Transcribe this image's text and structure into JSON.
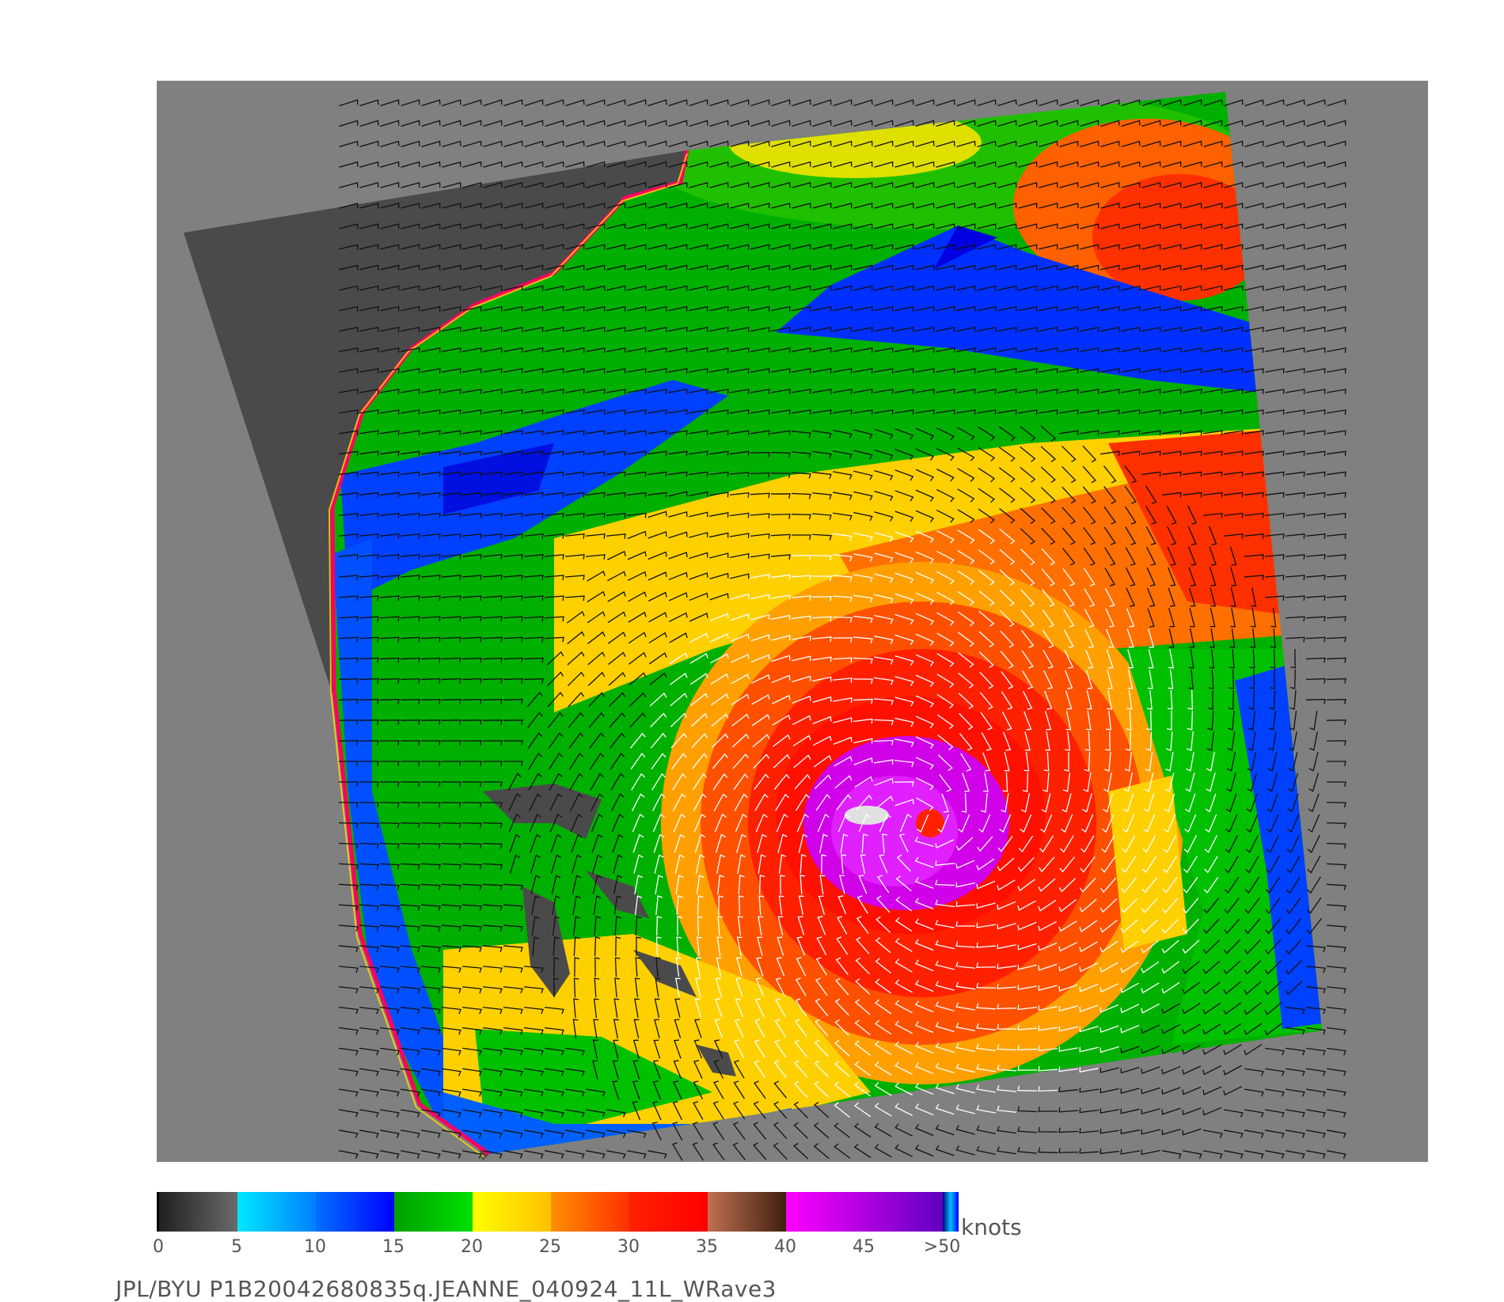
{
  "caption": "JPL/BYU  P1B20042680835q.JEANNE_040924_11L_WRave3",
  "colorbar": {
    "units": "knots",
    "ticks": [
      "0",
      "5",
      "10",
      "15",
      "20",
      "25",
      "30",
      "35",
      "40",
      "45",
      ">50"
    ],
    "segments": [
      {
        "from": 0,
        "to": 5,
        "start": "#202020",
        "end": "#6a6a6a"
      },
      {
        "from": 5,
        "to": 10,
        "start": "#00e8ff",
        "end": "#0080ff"
      },
      {
        "from": 10,
        "to": 15,
        "start": "#0070ff",
        "end": "#0000ff"
      },
      {
        "from": 15,
        "to": 20,
        "start": "#00a000",
        "end": "#00e000"
      },
      {
        "from": 20,
        "to": 25,
        "start": "#ffff00",
        "end": "#ffc000"
      },
      {
        "from": 25,
        "to": 30,
        "start": "#ff9000",
        "end": "#ff3000"
      },
      {
        "from": 30,
        "to": 35,
        "start": "#ff2000",
        "end": "#ff0000"
      },
      {
        "from": 35,
        "to": 40,
        "start": "#c07050",
        "end": "#402010"
      },
      {
        "from": 40,
        "to": 50,
        "start": "#ff00ff",
        "end": "#6000c0"
      }
    ]
  },
  "colors": {
    "background_panel": "#808080",
    "no_data_swath": "#4a4a4a",
    "land_outline": "#ff0060"
  },
  "storm": {
    "name": "JEANNE",
    "id": "11L",
    "date": "040924"
  }
}
